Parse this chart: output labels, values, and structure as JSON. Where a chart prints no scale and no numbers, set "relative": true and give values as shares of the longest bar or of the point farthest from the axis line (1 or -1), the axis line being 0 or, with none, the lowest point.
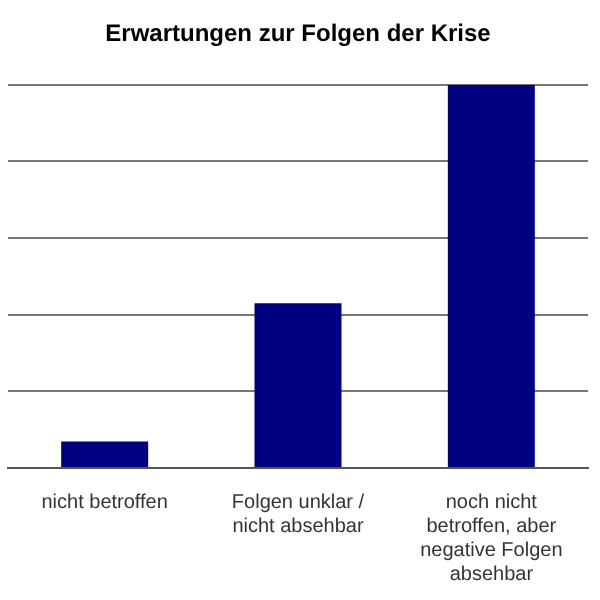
{
  "chart_data": {
    "type": "bar",
    "title": "Erwartungen zur Folgen der Krise",
    "categories": [
      "nicht betroffen",
      "Folgen unklar / nicht absehbar",
      "noch nicht betroffen, aber negative Folgen absehbar"
    ],
    "values": [
      0.069,
      0.43,
      1
    ],
    "color": "#000080",
    "relative": true,
    "grid": "y"
  }
}
